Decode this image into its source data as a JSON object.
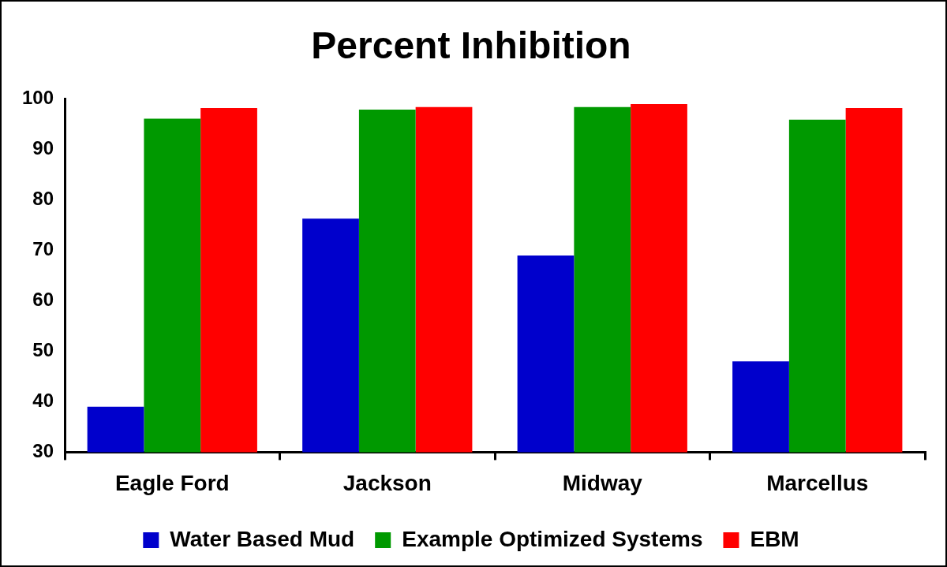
{
  "chart_data": {
    "type": "bar",
    "title": "Percent Inhibition",
    "categories": [
      "Eagle Ford",
      "Jackson",
      "Midway",
      "Marcellus"
    ],
    "series": [
      {
        "name": "Water Based Mud",
        "color": "#0000cc",
        "values": [
          39,
          76.3,
          69,
          48
        ]
      },
      {
        "name": "Example Optimized Systems",
        "color": "#009900",
        "values": [
          96.1,
          97.9,
          98.4,
          95.9
        ]
      },
      {
        "name": "EBM",
        "color": "#ff0000",
        "values": [
          98.2,
          98.4,
          99,
          98.2
        ]
      }
    ],
    "ylim": [
      30,
      100
    ],
    "yticks": [
      30,
      40,
      50,
      60,
      70,
      80,
      90,
      100
    ],
    "grid": false,
    "legend": "bottom"
  }
}
